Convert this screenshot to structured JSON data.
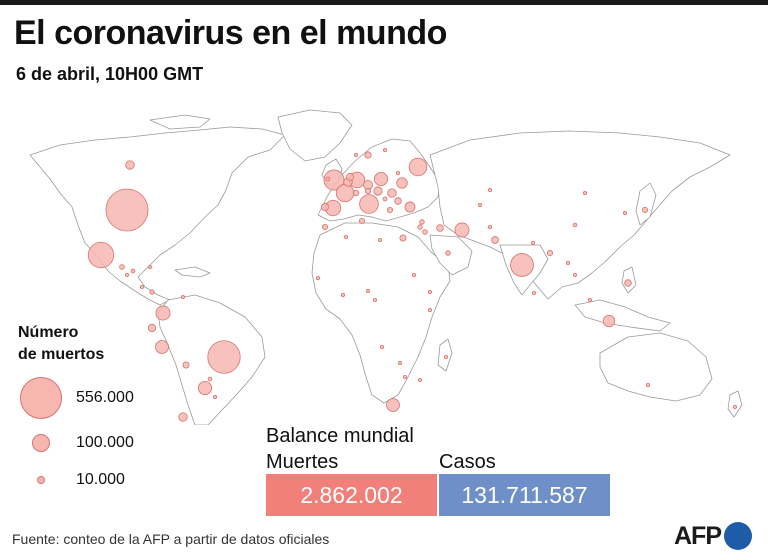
{
  "header": {
    "title": "El coronavirus en el mundo",
    "subtitle": "6 de abril, 10H00 GMT"
  },
  "legend": {
    "title_line1": "Número",
    "title_line2": "de muertos",
    "items": [
      {
        "label": "556.000",
        "value": 556000
      },
      {
        "label": "100.000",
        "value": 100000
      },
      {
        "label": "10.000",
        "value": 10000
      }
    ]
  },
  "balance": {
    "title": "Balance mundial",
    "deaths_label": "Muertes",
    "deaths_value": "2.862.002",
    "cases_label": "Casos",
    "cases_value": "131.711.587"
  },
  "source": "Fuente: conteo de la AFP a partir de datos oficiales",
  "logo": "AFP",
  "colors": {
    "bubble_fill": "#f6b7b1",
    "bubble_stroke": "#d9716b",
    "deaths_box": "#f2807a",
    "cases_box": "#6f8fc9",
    "logo_dot": "#1f5ca8"
  },
  "map": {
    "bubbles": [
      {
        "country": "Estados Unidos",
        "deaths": 556000
      },
      {
        "country": "Brasil",
        "deaths": 332000
      },
      {
        "country": "México",
        "deaths": 204000
      },
      {
        "country": "India",
        "deaths": 165000
      },
      {
        "country": "Reino Unido",
        "deaths": 127000
      },
      {
        "country": "Italia",
        "deaths": 111000
      },
      {
        "country": "Rusia",
        "deaths": 99000
      },
      {
        "country": "Francia",
        "deaths": 97000
      },
      {
        "country": "Alemania",
        "deaths": 77000
      },
      {
        "country": "España",
        "deaths": 76000
      },
      {
        "country": "Colombia",
        "deaths": 63000
      },
      {
        "country": "Irán",
        "deaths": 63000
      },
      {
        "country": "Polonia",
        "deaths": 55000
      },
      {
        "country": "Argentina",
        "deaths": 56000
      },
      {
        "country": "Perú",
        "deaths": 53000
      },
      {
        "country": "Sudáfrica",
        "deaths": 53000
      },
      {
        "country": "Ucrania",
        "deaths": 35000
      },
      {
        "country": "Indonesia",
        "deaths": 42000
      },
      {
        "country": "Turquía",
        "deaths": 32000
      },
      {
        "country": "Canadá",
        "deaths": 23000
      },
      {
        "country": "Chile",
        "deaths": 23000
      },
      {
        "country": "República Checa",
        "deaths": 27000
      },
      {
        "country": "Rumanía",
        "deaths": 23000
      },
      {
        "country": "Bélgica",
        "deaths": 23000
      },
      {
        "country": "Hungría",
        "deaths": 22000
      },
      {
        "country": "Ecuador",
        "deaths": 17000
      },
      {
        "country": "Filipinas",
        "deaths": 14000
      },
      {
        "country": "Pakistán",
        "deaths": 15000
      },
      {
        "country": "Egipto",
        "deaths": 12000
      },
      {
        "country": "Suecia",
        "deaths": 13000
      },
      {
        "country": "Portugal",
        "deaths": 17000
      },
      {
        "country": "Bolivia",
        "deaths": 12000
      },
      {
        "country": "Países Bajos",
        "deaths": 16000
      },
      {
        "country": "Bulgaria",
        "deaths": 14000
      },
      {
        "country": "Japón",
        "deaths": 9000
      },
      {
        "country": "Marruecos",
        "deaths": 8900
      },
      {
        "country": "Bangladés",
        "deaths": 9000
      },
      {
        "country": "Irak",
        "deaths": 14000
      },
      {
        "country": "Guatemala",
        "deaths": 7000
      },
      {
        "country": "Panamá",
        "deaths": 6000
      },
      {
        "country": "Paraguay",
        "deaths": 4500
      },
      {
        "country": "Arabia Saudita",
        "deaths": 6700
      },
      {
        "country": "Etiopía",
        "deaths": 3000
      },
      {
        "country": "China",
        "deaths": 4600
      },
      {
        "country": "Kazajistán",
        "deaths": 3000
      },
      {
        "country": "Israel",
        "deaths": 6200
      },
      {
        "country": "Venezuela",
        "deaths": 1600
      },
      {
        "country": "Honduras",
        "deaths": 4700
      },
      {
        "country": "Cuba",
        "deaths": 400
      },
      {
        "country": "Kenia",
        "deaths": 2200
      },
      {
        "country": "Nigeria",
        "deaths": 2000
      },
      {
        "country": "Argelia",
        "deaths": 3000
      },
      {
        "country": "Túnez",
        "deaths": 8800
      },
      {
        "country": "Uruguay",
        "deaths": 900
      },
      {
        "country": "Myanmar",
        "deaths": 3200
      },
      {
        "country": "Australia",
        "deaths": 900
      },
      {
        "country": "Grecia",
        "deaths": 8900
      },
      {
        "country": "Austria",
        "deaths": 9400
      },
      {
        "country": "Suiza",
        "deaths": 10000
      },
      {
        "country": "Bielorrusia",
        "deaths": 2200
      },
      {
        "country": "Jordania",
        "deaths": 7000
      },
      {
        "country": "Líbano",
        "deaths": 6700
      },
      {
        "country": "Nepal",
        "deaths": 3000
      },
      {
        "country": "Malasia",
        "deaths": 1300
      },
      {
        "country": "Corea del Sur",
        "deaths": 1700
      },
      {
        "country": "Zimbabue",
        "deaths": 1500
      },
      {
        "country": "Zambia",
        "deaths": 1200
      },
      {
        "country": "Camerún",
        "deaths": 700
      },
      {
        "country": "Senegal",
        "deaths": 1000
      },
      {
        "country": "Sudán",
        "deaths": 2000
      },
      {
        "country": "Libia",
        "deaths": 2600
      },
      {
        "country": "Mozambique",
        "deaths": 800
      },
      {
        "country": "Ghana",
        "deaths": 750
      },
      {
        "country": "Costa Rica",
        "deaths": 3000
      },
      {
        "country": "El Salvador",
        "deaths": 2000
      },
      {
        "country": "Tailandia",
        "deaths": 100
      },
      {
        "country": "Uzbekistán",
        "deaths": 600
      },
      {
        "country": "Afganistán",
        "deaths": 2500
      },
      {
        "country": "Sri Lanka",
        "deaths": 600
      },
      {
        "country": "Mongolia",
        "deaths": 10
      },
      {
        "country": "Madagascar",
        "deaths": 300
      },
      {
        "country": "Angola",
        "deaths": 500
      },
      {
        "country": "Nueva Zelanda",
        "deaths": 26
      },
      {
        "country": "Serbia",
        "deaths": 5000
      },
      {
        "country": "Irlanda",
        "deaths": 4800
      },
      {
        "country": "Noruega",
        "deaths": 700
      },
      {
        "country": "Finlandia",
        "deaths": 850
      }
    ]
  }
}
